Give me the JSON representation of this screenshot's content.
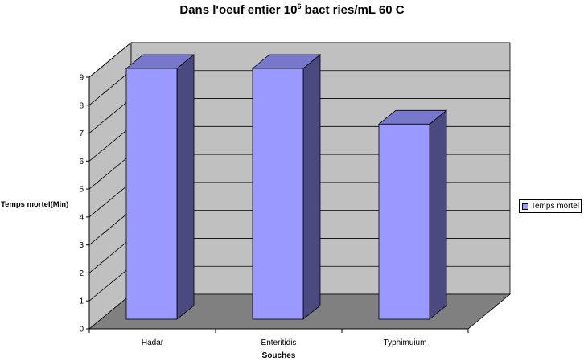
{
  "chart_data": {
    "type": "bar",
    "title_main": "Dans l'oeuf entier 10",
    "title_sup": "6",
    "title_rest": " bact  ries/mL 60 C",
    "categories": [
      "Hadar",
      "Enteritidis",
      "Typhimuium"
    ],
    "series": [
      {
        "name": "Temps mortel",
        "values": [
          9,
          9,
          7
        ]
      }
    ],
    "xlabel": "Souches",
    "ylabel": "Temps mortel(Min)",
    "ylim": [
      0,
      9
    ],
    "yticks": [
      "0",
      "1",
      "2",
      "3",
      "4",
      "5",
      "6",
      "7",
      "8",
      "9"
    ],
    "grid": true,
    "legend": "right",
    "colors": {
      "bar_front": "#9999ff",
      "bar_side": "#4a4a80",
      "bar_top": "#7777cc",
      "back_wall": "#c0c0c0",
      "floor": "#808080"
    }
  }
}
